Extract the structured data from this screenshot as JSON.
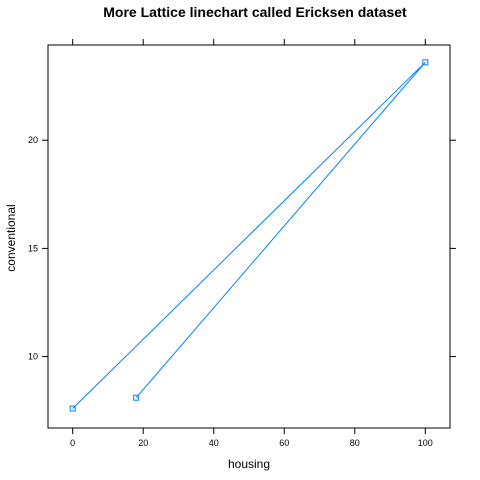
{
  "chart_data": {
    "type": "line",
    "title": "More Lattice linechart called Ericksen dataset",
    "xlabel": "housing",
    "ylabel": "conventional",
    "xlim": [
      -7,
      107
    ],
    "ylim": [
      6.7,
      24.4
    ],
    "x_ticks": [
      0,
      20,
      40,
      60,
      80,
      100
    ],
    "y_ticks": [
      10,
      15,
      20
    ],
    "x_tick_labels": [
      "0",
      "20",
      "40",
      "60",
      "80",
      "100"
    ],
    "y_tick_labels": [
      "10",
      "15",
      "20"
    ],
    "grid": false,
    "legend": "none",
    "color": "#0080ff",
    "series": [
      {
        "x": [
          0,
          100,
          18
        ],
        "y": [
          7.6,
          23.6,
          8.1
        ]
      }
    ]
  }
}
